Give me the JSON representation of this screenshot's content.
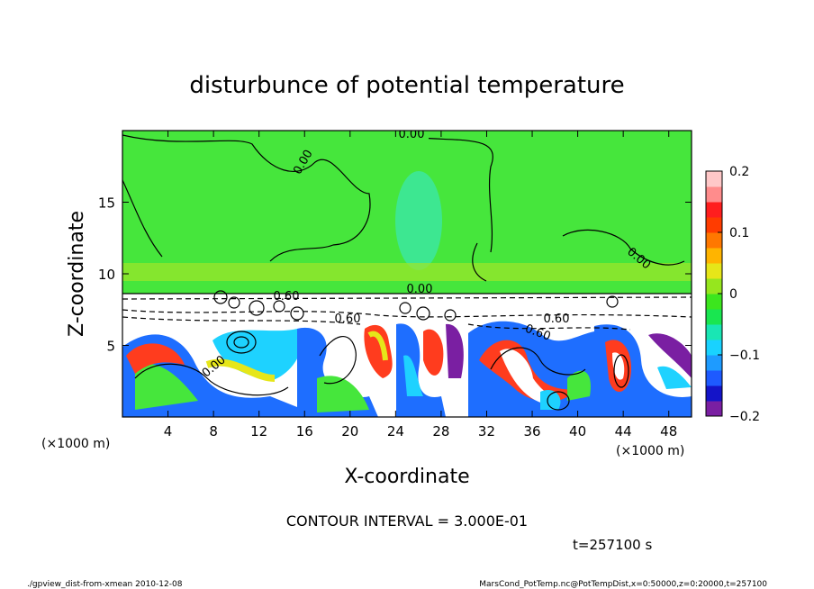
{
  "chart_data": {
    "type": "heatmap",
    "title": "disturbunce of potential temperature",
    "xlabel": "X-coordinate",
    "ylabel": "Z-coordinate",
    "x_unit": "(×1000 m)",
    "y_unit": "(×1000 m)",
    "xlim": [
      0,
      50
    ],
    "ylim": [
      0,
      20
    ],
    "x_ticks": [
      4,
      8,
      12,
      16,
      20,
      24,
      28,
      32,
      36,
      40,
      44,
      48
    ],
    "y_ticks": [
      5,
      10,
      15
    ],
    "colorbar": {
      "range": [
        -0.2,
        0.2
      ],
      "tick_values": [
        0.2,
        0.1,
        0,
        -0.1,
        -0.2
      ],
      "tick_labels": [
        "0.2",
        "0.1",
        "0",
        "−0.1",
        "−0.2"
      ],
      "colors": [
        "#7a1fa2",
        "#1414c8",
        "#1e5aff",
        "#1e9bff",
        "#19d2ff",
        "#19e6b4",
        "#19e650",
        "#3ce61e",
        "#96e61e",
        "#e6e619",
        "#ffb400",
        "#ff7800",
        "#ff3c00",
        "#ff1e1e",
        "#ff8c8c",
        "#ffc8c8"
      ]
    },
    "contour_labels": [
      "0.00",
      "0.00",
      "0.00",
      "0.00",
      "0.60",
      "0.60",
      "0.60",
      "0.60",
      "0.00"
    ],
    "contour_interval_text": "CONTOUR INTERVAL = 3.000E-01",
    "time_text": "t=257100 s"
  },
  "footer": {
    "left": "./gpview_dist-from-xmean  2010-12-08",
    "right": "MarsCond_PotTemp.nc@PotTempDist,x=0:50000,z=0:20000,t=257100"
  }
}
